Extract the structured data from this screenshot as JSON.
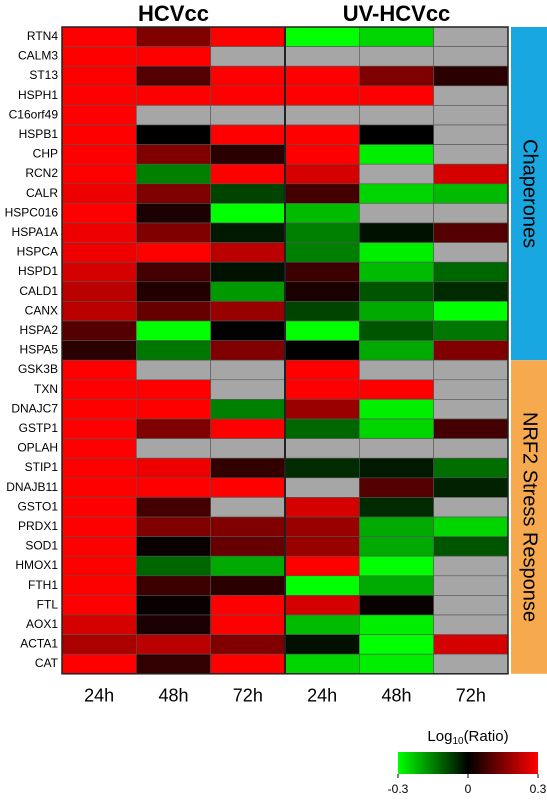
{
  "chart_data": {
    "type": "heatmap",
    "column_groups": [
      "HCVcc",
      "UV-HCVcc"
    ],
    "x": [
      "24h",
      "48h",
      "72h",
      "24h",
      "48h",
      "72h"
    ],
    "row_groups": [
      {
        "name": "Chaperones",
        "color": "#19a7e1",
        "rows": [
          "RTN4",
          "CALM3",
          "ST13",
          "HSPH1",
          "C16orf49",
          "HSPB1",
          "CHP",
          "RCN2",
          "CALR",
          "HSPC016",
          "HSPA1A",
          "HSPCA",
          "HSPD1",
          "CALD1",
          "CANX",
          "HSPA2",
          "HSPA5"
        ],
        "values": [
          [
            0.3,
            0.15,
            0.3,
            -0.3,
            -0.25,
            null
          ],
          [
            0.3,
            0.3,
            null,
            null,
            null,
            null
          ],
          [
            0.3,
            0.1,
            0.3,
            0.3,
            0.15,
            0.05
          ],
          [
            0.3,
            0.3,
            0.3,
            0.3,
            0.3,
            null
          ],
          [
            0.3,
            null,
            null,
            null,
            null,
            null
          ],
          [
            0.3,
            0.0,
            0.3,
            0.3,
            0.0,
            null
          ],
          [
            0.3,
            0.15,
            0.05,
            0.3,
            -0.28,
            null
          ],
          [
            0.3,
            -0.15,
            0.3,
            0.25,
            null,
            0.25
          ],
          [
            0.28,
            0.15,
            -0.08,
            0.08,
            -0.25,
            -0.22
          ],
          [
            0.3,
            0.03,
            -0.3,
            -0.22,
            null,
            null
          ],
          [
            0.28,
            0.15,
            -0.03,
            -0.15,
            -0.02,
            0.1
          ],
          [
            0.28,
            0.3,
            0.22,
            -0.15,
            -0.28,
            null
          ],
          [
            0.25,
            0.08,
            -0.02,
            0.07,
            -0.22,
            -0.12
          ],
          [
            0.22,
            0.04,
            -0.18,
            0.03,
            -0.1,
            -0.05
          ],
          [
            0.22,
            0.12,
            0.18,
            -0.08,
            -0.2,
            -0.3
          ],
          [
            0.1,
            -0.3,
            0.0,
            -0.3,
            -0.1,
            -0.14
          ],
          [
            0.05,
            -0.14,
            0.15,
            0.0,
            -0.2,
            0.15
          ]
        ]
      },
      {
        "name": "NRF2 Stress Response",
        "color": "#f6aa4d",
        "rows": [
          "GSK3B",
          "TXN",
          "DNAJC7",
          "GSTP1",
          "OPLAH",
          "STIP1",
          "DNAJB11",
          "GSTO1",
          "PRDX1",
          "SOD1",
          "HMOX1",
          "FTH1",
          "FTL",
          "AOX1",
          "ACTA1",
          "CAT"
        ],
        "values": [
          [
            0.3,
            null,
            null,
            0.3,
            null,
            null
          ],
          [
            0.3,
            0.3,
            null,
            0.3,
            0.3,
            null
          ],
          [
            0.3,
            0.3,
            -0.15,
            0.18,
            -0.28,
            null
          ],
          [
            0.3,
            0.15,
            0.3,
            -0.12,
            -0.25,
            0.08
          ],
          [
            0.3,
            null,
            null,
            null,
            null,
            null
          ],
          [
            0.3,
            0.28,
            0.06,
            -0.05,
            -0.03,
            -0.13
          ],
          [
            0.3,
            0.3,
            0.3,
            null,
            0.1,
            -0.04
          ],
          [
            0.3,
            0.08,
            null,
            0.25,
            -0.05,
            null
          ],
          [
            0.3,
            0.15,
            0.15,
            0.18,
            -0.2,
            -0.25
          ],
          [
            0.3,
            0.01,
            0.12,
            0.18,
            -0.2,
            -0.1
          ],
          [
            0.3,
            -0.12,
            -0.2,
            0.3,
            -0.3,
            null
          ],
          [
            0.3,
            0.07,
            0.05,
            -0.3,
            -0.2,
            null
          ],
          [
            0.3,
            0.01,
            0.3,
            0.25,
            0.01,
            null
          ],
          [
            0.25,
            0.03,
            0.3,
            -0.22,
            -0.28,
            null
          ],
          [
            0.2,
            0.22,
            0.15,
            -0.02,
            -0.3,
            0.25
          ],
          [
            0.3,
            0.06,
            0.3,
            -0.25,
            -0.28,
            null
          ]
        ]
      }
    ],
    "colorbar_title": {
      "base": "Log",
      "subscript": "10",
      "rest": "(Ratio)"
    },
    "zlim": [
      -0.3,
      0.3
    ],
    "zticks": [
      -0.3,
      0,
      0.3
    ],
    "colors": {
      "low": "#00ff00",
      "mid": "#000000",
      "high": "#ff0000",
      "missing": "#a6a6a6"
    }
  }
}
